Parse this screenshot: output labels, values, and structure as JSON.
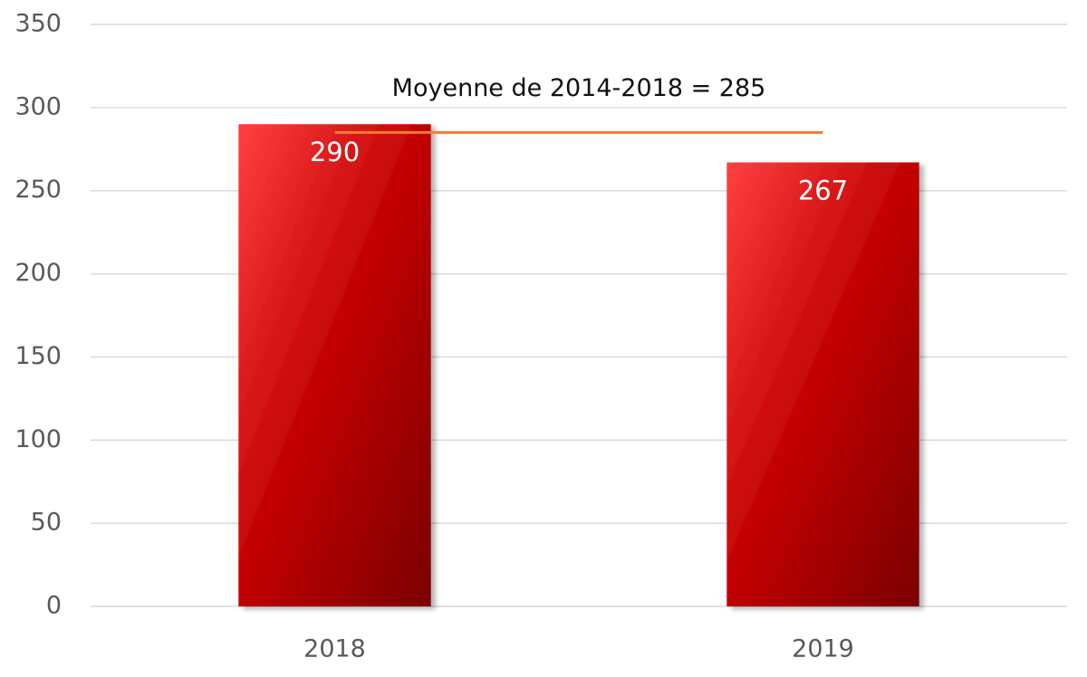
{
  "chart_data": {
    "type": "bar",
    "categories": [
      "2018",
      "2019"
    ],
    "values": [
      290,
      267
    ],
    "color": "#c00000",
    "ylim": [
      0,
      350
    ],
    "yticks": [
      0,
      50,
      100,
      150,
      200,
      250,
      300,
      350
    ],
    "grid": true,
    "reference": {
      "value": 285,
      "label": "Moyenne de 2014-2018 = 285",
      "color": "#ed7d31"
    }
  }
}
